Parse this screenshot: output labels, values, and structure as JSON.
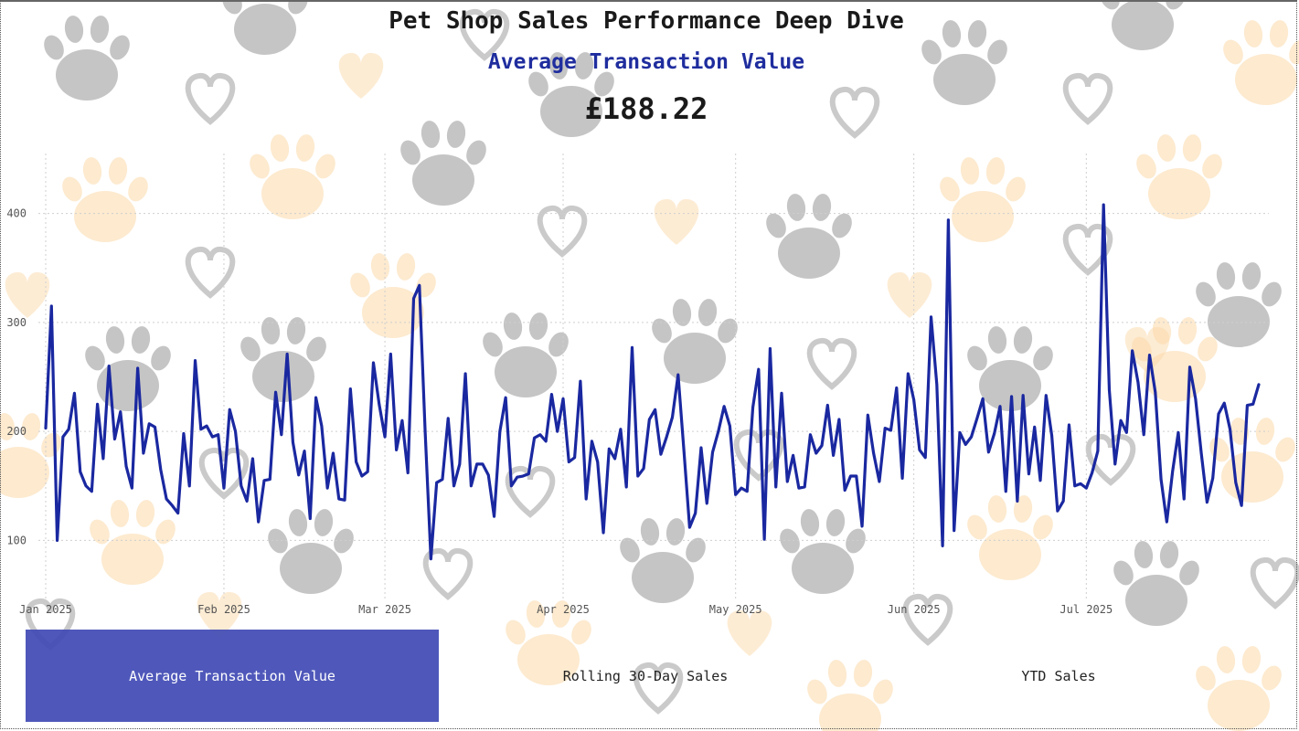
{
  "header": {
    "title": "Pet Shop Sales Performance Deep Dive",
    "subtitle": "Average Transaction Value",
    "kpi_value": "£188.22"
  },
  "tabs": [
    {
      "label": "Average Transaction Value",
      "active": true
    },
    {
      "label": "Rolling 30-Day Sales",
      "active": false
    },
    {
      "label": "YTD Sales",
      "active": false
    }
  ],
  "colors": {
    "line": "#1a28a0",
    "active_tab": "#404ab4",
    "subtitle": "#1f2d9e",
    "paw_grey": "#9e9e9e",
    "paw_peach": "#fbd9a8"
  },
  "background_icons": [
    "paw-print-icon",
    "heart-icon",
    "heart-outline-icon"
  ],
  "chart_data": {
    "type": "line",
    "title": "Average Transaction Value",
    "xlabel": "",
    "ylabel": "",
    "ylim": [
      45,
      455
    ],
    "yticks": [
      100,
      200,
      300,
      400
    ],
    "xticks": [
      {
        "date": "2025-01-01",
        "label": "Jan 2025"
      },
      {
        "date": "2025-02-01",
        "label": "Feb 2025"
      },
      {
        "date": "2025-03-01",
        "label": "Mar 2025"
      },
      {
        "date": "2025-04-01",
        "label": "Apr 2025"
      },
      {
        "date": "2025-05-01",
        "label": "May 2025"
      },
      {
        "date": "2025-06-01",
        "label": "Jun 2025"
      },
      {
        "date": "2025-07-01",
        "label": "Jul 2025"
      }
    ],
    "x_start": "2025-01-01",
    "grid": true,
    "series": [
      {
        "values": [
          203,
          315,
          100,
          195,
          202,
          235,
          163,
          150,
          145,
          225,
          175,
          260,
          193,
          218,
          168,
          148,
          258,
          180,
          207,
          204,
          165,
          138,
          132,
          125,
          198,
          150,
          265,
          202,
          205,
          195,
          197,
          148,
          220,
          200,
          150,
          136,
          175,
          117,
          155,
          156,
          236,
          197,
          271,
          190,
          160,
          182,
          120,
          231,
          205,
          148,
          180,
          138,
          137,
          239,
          172,
          159,
          163,
          263,
          225,
          195,
          271,
          183,
          210,
          162,
          322,
          334,
          200,
          83,
          153,
          156,
          212,
          150,
          170,
          253,
          150,
          170,
          170,
          160,
          122,
          200,
          231,
          150,
          158,
          159,
          161,
          194,
          197,
          191,
          234,
          200,
          230,
          172,
          176,
          246,
          138,
          191,
          172,
          107,
          184,
          175,
          202,
          149,
          277,
          159,
          166,
          211,
          220,
          179,
          195,
          213,
          252,
          183,
          112,
          125,
          185,
          134,
          181,
          200,
          223,
          205,
          142,
          148,
          145,
          222,
          257,
          101,
          276,
          149,
          235,
          154,
          178,
          148,
          149,
          197,
          180,
          187,
          224,
          178,
          211,
          146,
          159,
          159,
          113,
          215,
          180,
          154,
          203,
          201,
          240,
          157,
          253,
          229,
          183,
          176,
          305,
          243,
          95,
          394,
          109,
          199,
          188,
          195,
          212,
          230,
          181,
          198,
          223,
          145,
          232,
          136,
          233,
          161,
          204,
          155,
          233,
          196,
          127,
          136,
          206,
          150,
          152,
          148,
          162,
          182,
          408,
          238,
          170,
          210,
          199,
          274,
          245,
          197,
          270,
          236,
          156,
          117,
          163,
          199,
          138,
          259,
          230,
          180,
          135,
          157,
          216,
          226,
          202,
          153,
          132,
          224,
          225,
          243
        ]
      }
    ]
  }
}
